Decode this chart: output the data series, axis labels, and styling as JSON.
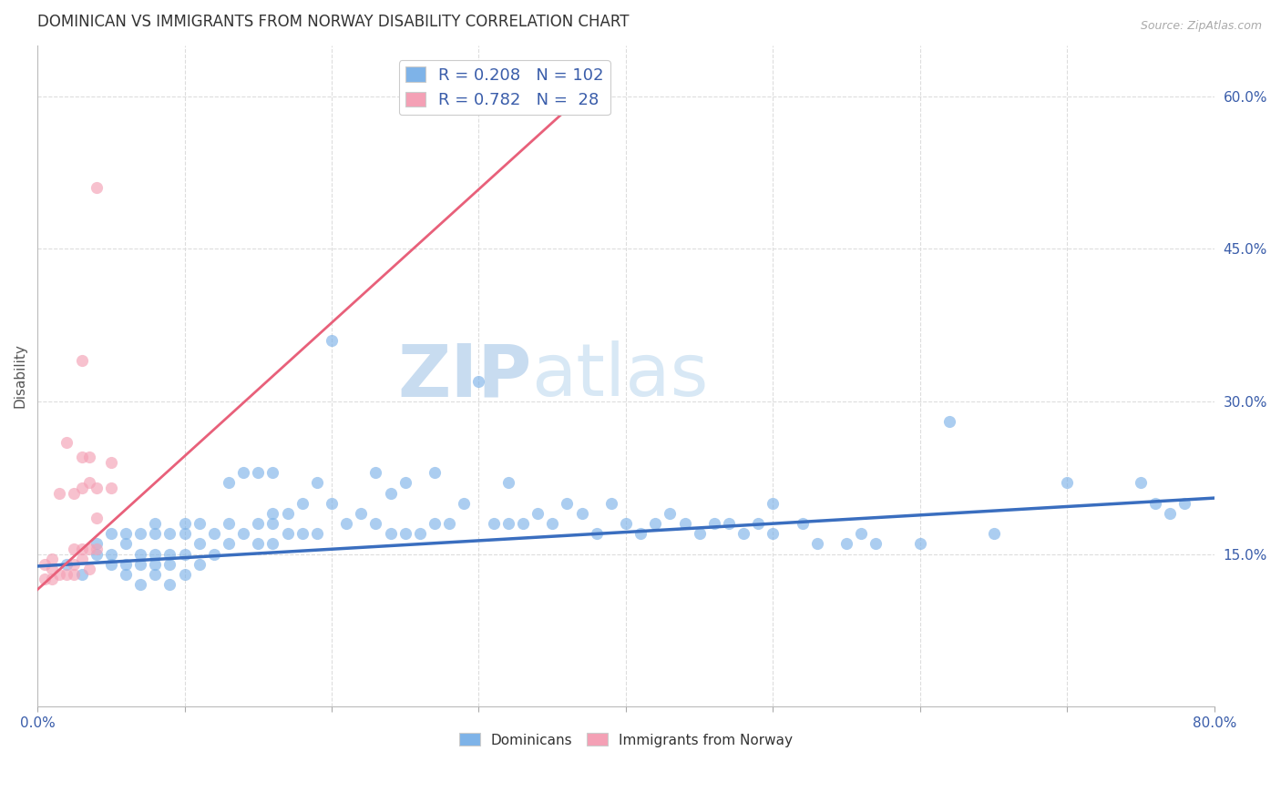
{
  "title": "DOMINICAN VS IMMIGRANTS FROM NORWAY DISABILITY CORRELATION CHART",
  "source": "Source: ZipAtlas.com",
  "ylabel": "Disability",
  "xlabel": "",
  "xlim": [
    0.0,
    0.8
  ],
  "ylim": [
    0.0,
    0.65
  ],
  "xticks": [
    0.0,
    0.1,
    0.2,
    0.3,
    0.4,
    0.5,
    0.6,
    0.7,
    0.8
  ],
  "xticklabels": [
    "0.0%",
    "",
    "",
    "",
    "",
    "",
    "",
    "",
    "80.0%"
  ],
  "yticks_right": [
    0.15,
    0.3,
    0.45,
    0.6
  ],
  "ytick_labels_right": [
    "15.0%",
    "30.0%",
    "45.0%",
    "60.0%"
  ],
  "blue_R": 0.208,
  "blue_N": 102,
  "pink_R": 0.782,
  "pink_N": 28,
  "blue_color": "#7EB3E8",
  "pink_color": "#F4A0B5",
  "blue_line_color": "#3A6EBF",
  "pink_line_color": "#E8607A",
  "legend_color": "#3A5DAA",
  "watermark_zip": "ZIP",
  "watermark_atlas": "atlas",
  "background_color": "#FFFFFF",
  "grid_color": "#DDDDDD",
  "title_color": "#333333",
  "blue_scatter_x": [
    0.02,
    0.03,
    0.04,
    0.04,
    0.05,
    0.05,
    0.05,
    0.06,
    0.06,
    0.06,
    0.06,
    0.07,
    0.07,
    0.07,
    0.07,
    0.08,
    0.08,
    0.08,
    0.08,
    0.08,
    0.09,
    0.09,
    0.09,
    0.09,
    0.1,
    0.1,
    0.1,
    0.1,
    0.11,
    0.11,
    0.11,
    0.12,
    0.12,
    0.13,
    0.13,
    0.13,
    0.14,
    0.14,
    0.15,
    0.15,
    0.15,
    0.16,
    0.16,
    0.16,
    0.16,
    0.17,
    0.17,
    0.18,
    0.18,
    0.19,
    0.19,
    0.2,
    0.2,
    0.21,
    0.22,
    0.23,
    0.23,
    0.24,
    0.24,
    0.25,
    0.25,
    0.26,
    0.27,
    0.27,
    0.28,
    0.29,
    0.3,
    0.31,
    0.32,
    0.32,
    0.33,
    0.34,
    0.35,
    0.36,
    0.37,
    0.38,
    0.39,
    0.4,
    0.41,
    0.42,
    0.43,
    0.44,
    0.45,
    0.46,
    0.47,
    0.48,
    0.49,
    0.5,
    0.5,
    0.52,
    0.53,
    0.55,
    0.56,
    0.57,
    0.6,
    0.62,
    0.65,
    0.7,
    0.75,
    0.76,
    0.77,
    0.78
  ],
  "blue_scatter_y": [
    0.14,
    0.13,
    0.15,
    0.16,
    0.14,
    0.15,
    0.17,
    0.13,
    0.14,
    0.16,
    0.17,
    0.12,
    0.14,
    0.15,
    0.17,
    0.13,
    0.14,
    0.15,
    0.17,
    0.18,
    0.12,
    0.14,
    0.15,
    0.17,
    0.13,
    0.15,
    0.17,
    0.18,
    0.14,
    0.16,
    0.18,
    0.15,
    0.17,
    0.16,
    0.18,
    0.22,
    0.17,
    0.23,
    0.16,
    0.18,
    0.23,
    0.16,
    0.18,
    0.19,
    0.23,
    0.17,
    0.19,
    0.17,
    0.2,
    0.17,
    0.22,
    0.2,
    0.36,
    0.18,
    0.19,
    0.18,
    0.23,
    0.17,
    0.21,
    0.17,
    0.22,
    0.17,
    0.18,
    0.23,
    0.18,
    0.2,
    0.32,
    0.18,
    0.18,
    0.22,
    0.18,
    0.19,
    0.18,
    0.2,
    0.19,
    0.17,
    0.2,
    0.18,
    0.17,
    0.18,
    0.19,
    0.18,
    0.17,
    0.18,
    0.18,
    0.17,
    0.18,
    0.17,
    0.2,
    0.18,
    0.16,
    0.16,
    0.17,
    0.16,
    0.16,
    0.28,
    0.17,
    0.22,
    0.22,
    0.2,
    0.19,
    0.2
  ],
  "pink_scatter_x": [
    0.005,
    0.005,
    0.01,
    0.01,
    0.01,
    0.015,
    0.015,
    0.02,
    0.02,
    0.025,
    0.025,
    0.025,
    0.025,
    0.03,
    0.03,
    0.03,
    0.03,
    0.03,
    0.035,
    0.035,
    0.035,
    0.035,
    0.04,
    0.04,
    0.04,
    0.04,
    0.05,
    0.05
  ],
  "pink_scatter_y": [
    0.125,
    0.14,
    0.125,
    0.135,
    0.145,
    0.13,
    0.21,
    0.13,
    0.26,
    0.13,
    0.14,
    0.155,
    0.21,
    0.145,
    0.155,
    0.215,
    0.245,
    0.34,
    0.135,
    0.155,
    0.22,
    0.245,
    0.155,
    0.185,
    0.215,
    0.51,
    0.215,
    0.24
  ],
  "blue_trendline_x": [
    0.0,
    0.8
  ],
  "blue_trendline_y": [
    0.138,
    0.205
  ],
  "pink_trendline_x": [
    0.0,
    0.385
  ],
  "pink_trendline_y": [
    0.115,
    0.62
  ]
}
